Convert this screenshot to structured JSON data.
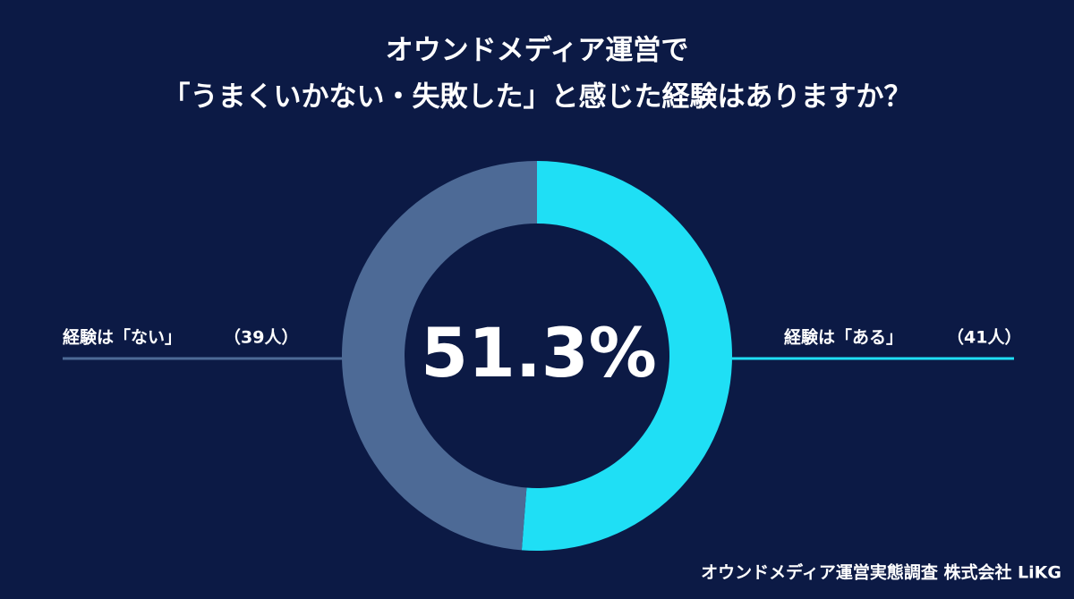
{
  "chart_data": {
    "type": "donut",
    "title": [
      "オウンドメディア運営で",
      "「うまくいかない・失敗した」と感じた経験はありますか？"
    ],
    "categories": [
      "経験は「ある」",
      "経験は「ない」"
    ],
    "values": [
      41,
      39
    ],
    "value_labels": [
      "（41人）",
      "（39人）"
    ],
    "colors": [
      "#1fdff5",
      "#4d6a96"
    ],
    "center_label": "51.3%",
    "source": "オウンドメディア運営実態調査  株式会社 LiKG"
  }
}
